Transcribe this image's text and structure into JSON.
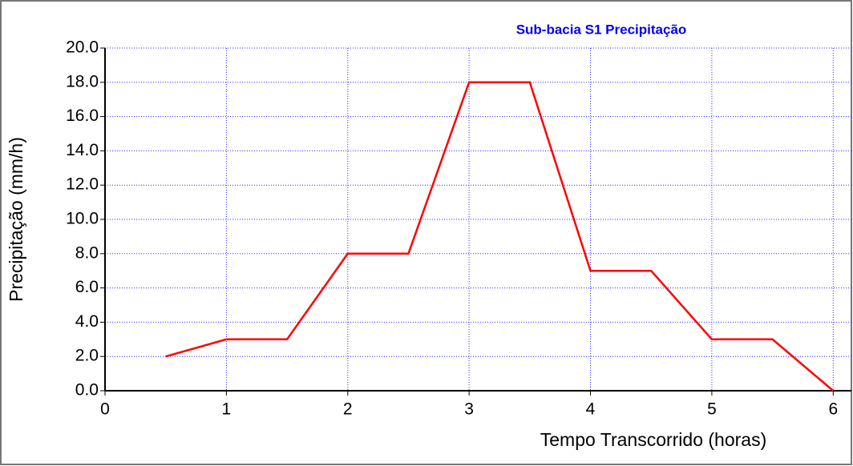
{
  "chart_data": {
    "type": "line",
    "title": "Sub-bacia S1 Precipitação",
    "x_label": "Tempo Transcorrido (horas)",
    "y_label": "Precipitação (mm/h)",
    "x": [
      0.5,
      1,
      1.5,
      2,
      2.5,
      3,
      3.5,
      4,
      4.5,
      5,
      5.5,
      6
    ],
    "series": [
      {
        "name": "Precipitação",
        "color": "#ff0000",
        "values": [
          2,
          3,
          3,
          8,
          8,
          18,
          18,
          7,
          7,
          3,
          3,
          0
        ]
      }
    ],
    "xlim": [
      0,
      6.15
    ],
    "xticks": [
      0,
      1,
      2,
      3,
      4,
      5,
      6
    ],
    "ylim": [
      0,
      20
    ],
    "yticks": [
      {
        "value": 0,
        "label": "0.0"
      },
      {
        "value": 2,
        "label": "2.0"
      },
      {
        "value": 4,
        "label": "4.0"
      },
      {
        "value": 6,
        "label": "6.0"
      },
      {
        "value": 8,
        "label": "8.0"
      },
      {
        "value": 10,
        "label": "10.0"
      },
      {
        "value": 12,
        "label": "12.0"
      },
      {
        "value": 14,
        "label": "14.0"
      },
      {
        "value": 16,
        "label": "16.0"
      },
      {
        "value": 18,
        "label": "18.0"
      },
      {
        "value": 20,
        "label": "20.0"
      }
    ],
    "grid": true
  }
}
